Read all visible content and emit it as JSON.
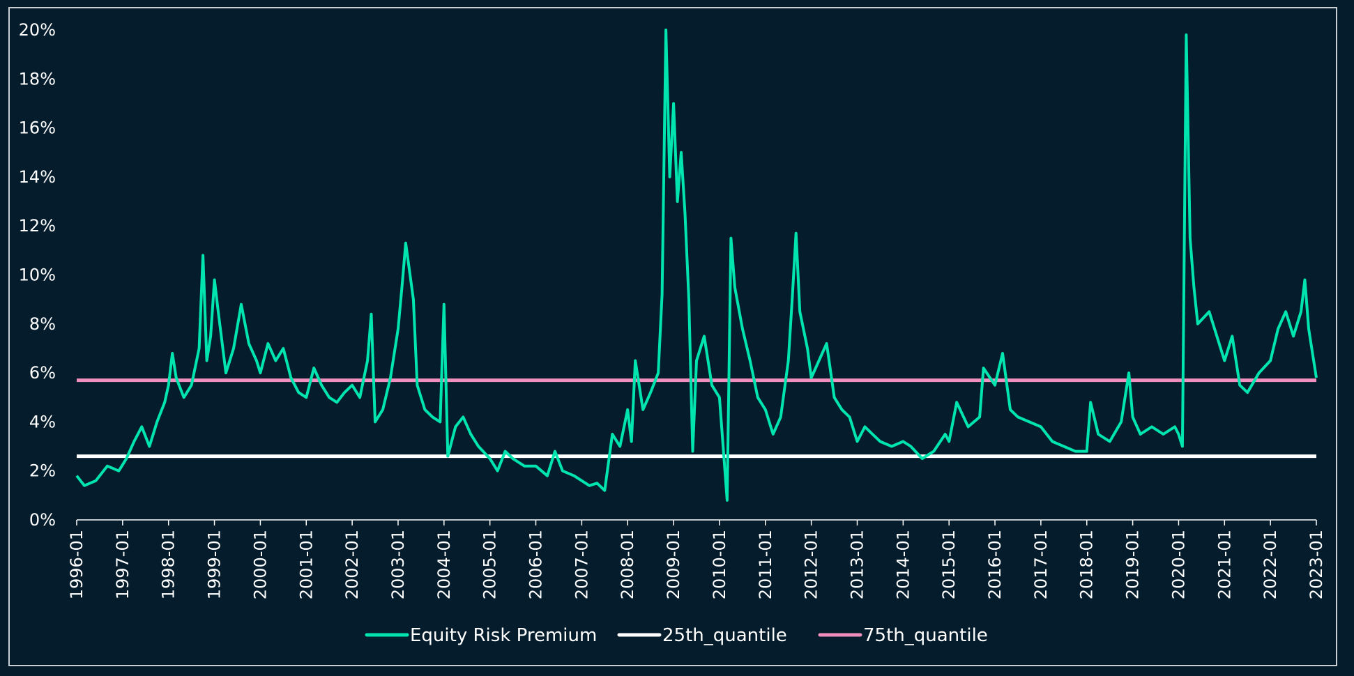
{
  "chart_data": {
    "type": "line",
    "title": "",
    "xlabel": "",
    "ylabel": "",
    "x_range": [
      "1996-01",
      "2023-01"
    ],
    "ylim": [
      0,
      20
    ],
    "y_format": "percent",
    "y_ticks": [
      {
        "value": 0,
        "label": "0%"
      },
      {
        "value": 2,
        "label": "2%"
      },
      {
        "value": 4,
        "label": "4%"
      },
      {
        "value": 6,
        "label": "6%"
      },
      {
        "value": 8,
        "label": "8%"
      },
      {
        "value": 10,
        "label": "10%"
      },
      {
        "value": 12,
        "label": "12%"
      },
      {
        "value": 14,
        "label": "14%"
      },
      {
        "value": 16,
        "label": "16%"
      },
      {
        "value": 18,
        "label": "18%"
      },
      {
        "value": 20,
        "label": "20%"
      }
    ],
    "x_ticks": [
      "1996-01",
      "1997-01",
      "1998-01",
      "1999-01",
      "2000-01",
      "2001-01",
      "2002-01",
      "2003-01",
      "2004-01",
      "2005-01",
      "2006-01",
      "2007-01",
      "2008-01",
      "2009-01",
      "2010-01",
      "2011-01",
      "2012-01",
      "2013-01",
      "2014-01",
      "2015-01",
      "2016-01",
      "2017-01",
      "2018-01",
      "2019-01",
      "2020-01",
      "2021-01",
      "2022-01",
      "2023-01"
    ],
    "grid": false,
    "legend_position": "bottom",
    "series": [
      {
        "name": "Equity Risk Premium",
        "color": "#00e5b0",
        "points": [
          [
            "1996-01",
            1.8
          ],
          [
            "1996-03",
            1.4
          ],
          [
            "1996-06",
            1.6
          ],
          [
            "1996-09",
            2.2
          ],
          [
            "1996-12",
            2.0
          ],
          [
            "1997-02",
            2.5
          ],
          [
            "1997-04",
            3.2
          ],
          [
            "1997-06",
            3.8
          ],
          [
            "1997-08",
            3.0
          ],
          [
            "1997-10",
            4.0
          ],
          [
            "1997-12",
            4.8
          ],
          [
            "1998-01",
            5.5
          ],
          [
            "1998-02",
            6.8
          ],
          [
            "1998-03",
            5.8
          ],
          [
            "1998-05",
            5.0
          ],
          [
            "1998-07",
            5.5
          ],
          [
            "1998-09",
            7.0
          ],
          [
            "1998-10",
            10.8
          ],
          [
            "1998-11",
            6.5
          ],
          [
            "1998-12",
            7.5
          ],
          [
            "1999-01",
            9.8
          ],
          [
            "1999-02",
            8.5
          ],
          [
            "1999-04",
            6.0
          ],
          [
            "1999-06",
            7.0
          ],
          [
            "1999-08",
            8.8
          ],
          [
            "1999-10",
            7.2
          ],
          [
            "1999-12",
            6.5
          ],
          [
            "2000-01",
            6.0
          ],
          [
            "2000-03",
            7.2
          ],
          [
            "2000-05",
            6.5
          ],
          [
            "2000-07",
            7.0
          ],
          [
            "2000-09",
            5.8
          ],
          [
            "2000-11",
            5.2
          ],
          [
            "2001-01",
            5.0
          ],
          [
            "2001-03",
            6.2
          ],
          [
            "2001-05",
            5.5
          ],
          [
            "2001-07",
            5.0
          ],
          [
            "2001-09",
            4.8
          ],
          [
            "2001-11",
            5.2
          ],
          [
            "2002-01",
            5.5
          ],
          [
            "2002-03",
            5.0
          ],
          [
            "2002-05",
            6.5
          ],
          [
            "2002-06",
            8.4
          ],
          [
            "2002-07",
            4.0
          ],
          [
            "2002-09",
            4.5
          ],
          [
            "2002-11",
            5.8
          ],
          [
            "2003-01",
            7.8
          ],
          [
            "2003-02",
            9.5
          ],
          [
            "2003-03",
            11.3
          ],
          [
            "2003-05",
            9.0
          ],
          [
            "2003-06",
            5.5
          ],
          [
            "2003-08",
            4.5
          ],
          [
            "2003-10",
            4.2
          ],
          [
            "2003-12",
            4.0
          ],
          [
            "2004-01",
            8.8
          ],
          [
            "2004-02",
            2.6
          ],
          [
            "2004-04",
            3.8
          ],
          [
            "2004-06",
            4.2
          ],
          [
            "2004-08",
            3.5
          ],
          [
            "2004-10",
            3.0
          ],
          [
            "2005-01",
            2.5
          ],
          [
            "2005-03",
            2.0
          ],
          [
            "2005-05",
            2.8
          ],
          [
            "2005-07",
            2.5
          ],
          [
            "2005-10",
            2.2
          ],
          [
            "2006-01",
            2.2
          ],
          [
            "2006-04",
            1.8
          ],
          [
            "2006-06",
            2.8
          ],
          [
            "2006-08",
            2.0
          ],
          [
            "2006-11",
            1.8
          ],
          [
            "2007-01",
            1.6
          ],
          [
            "2007-03",
            1.4
          ],
          [
            "2007-05",
            1.5
          ],
          [
            "2007-07",
            1.2
          ],
          [
            "2007-09",
            3.5
          ],
          [
            "2007-11",
            3.0
          ],
          [
            "2008-01",
            4.5
          ],
          [
            "2008-02",
            3.2
          ],
          [
            "2008-03",
            6.5
          ],
          [
            "2008-05",
            4.5
          ],
          [
            "2008-07",
            5.2
          ],
          [
            "2008-09",
            6.0
          ],
          [
            "2008-10",
            9.2
          ],
          [
            "2008-11",
            20.0
          ],
          [
            "2008-12",
            14.0
          ],
          [
            "2009-01",
            17.0
          ],
          [
            "2009-02",
            13.0
          ],
          [
            "2009-03",
            15.0
          ],
          [
            "2009-04",
            12.5
          ],
          [
            "2009-05",
            9.0
          ],
          [
            "2009-06",
            2.8
          ],
          [
            "2009-07",
            6.5
          ],
          [
            "2009-09",
            7.5
          ],
          [
            "2009-11",
            5.5
          ],
          [
            "2010-01",
            5.0
          ],
          [
            "2010-03",
            0.8
          ],
          [
            "2010-04",
            11.5
          ],
          [
            "2010-05",
            9.5
          ],
          [
            "2010-07",
            7.8
          ],
          [
            "2010-09",
            6.5
          ],
          [
            "2010-11",
            5.0
          ],
          [
            "2011-01",
            4.5
          ],
          [
            "2011-03",
            3.5
          ],
          [
            "2011-05",
            4.2
          ],
          [
            "2011-07",
            6.5
          ],
          [
            "2011-08",
            9.0
          ],
          [
            "2011-09",
            11.7
          ],
          [
            "2011-10",
            8.5
          ],
          [
            "2011-12",
            7.0
          ],
          [
            "2012-01",
            5.8
          ],
          [
            "2012-03",
            6.5
          ],
          [
            "2012-05",
            7.2
          ],
          [
            "2012-07",
            5.0
          ],
          [
            "2012-09",
            4.5
          ],
          [
            "2012-11",
            4.2
          ],
          [
            "2013-01",
            3.2
          ],
          [
            "2013-03",
            3.8
          ],
          [
            "2013-05",
            3.5
          ],
          [
            "2013-07",
            3.2
          ],
          [
            "2013-10",
            3.0
          ],
          [
            "2014-01",
            3.2
          ],
          [
            "2014-03",
            3.0
          ],
          [
            "2014-06",
            2.5
          ],
          [
            "2014-09",
            2.8
          ],
          [
            "2014-12",
            3.5
          ],
          [
            "2015-01",
            3.2
          ],
          [
            "2015-03",
            4.8
          ],
          [
            "2015-06",
            3.8
          ],
          [
            "2015-09",
            4.2
          ],
          [
            "2015-10",
            6.2
          ],
          [
            "2016-01",
            5.5
          ],
          [
            "2016-03",
            6.8
          ],
          [
            "2016-05",
            4.5
          ],
          [
            "2016-07",
            4.2
          ],
          [
            "2016-10",
            4.0
          ],
          [
            "2017-01",
            3.8
          ],
          [
            "2017-04",
            3.2
          ],
          [
            "2017-07",
            3.0
          ],
          [
            "2017-10",
            2.8
          ],
          [
            "2018-01",
            2.8
          ],
          [
            "2018-02",
            4.8
          ],
          [
            "2018-04",
            3.5
          ],
          [
            "2018-07",
            3.2
          ],
          [
            "2018-10",
            4.0
          ],
          [
            "2018-12",
            6.0
          ],
          [
            "2019-01",
            4.2
          ],
          [
            "2019-03",
            3.5
          ],
          [
            "2019-06",
            3.8
          ],
          [
            "2019-09",
            3.5
          ],
          [
            "2019-12",
            3.8
          ],
          [
            "2020-01",
            3.5
          ],
          [
            "2020-02",
            3.0
          ],
          [
            "2020-03",
            19.8
          ],
          [
            "2020-04",
            11.5
          ],
          [
            "2020-05",
            9.5
          ],
          [
            "2020-06",
            8.0
          ],
          [
            "2020-09",
            8.5
          ],
          [
            "2020-12",
            7.0
          ],
          [
            "2021-01",
            6.5
          ],
          [
            "2021-03",
            7.5
          ],
          [
            "2021-05",
            5.5
          ],
          [
            "2021-07",
            5.2
          ],
          [
            "2021-10",
            6.0
          ],
          [
            "2022-01",
            6.5
          ],
          [
            "2022-03",
            7.8
          ],
          [
            "2022-05",
            8.5
          ],
          [
            "2022-07",
            7.5
          ],
          [
            "2022-09",
            8.5
          ],
          [
            "2022-10",
            9.8
          ],
          [
            "2022-11",
            7.8
          ],
          [
            "2023-01",
            5.8
          ]
        ]
      },
      {
        "name": "25th_quantile",
        "color": "#ffffff",
        "points": [
          [
            "1996-01",
            2.6
          ],
          [
            "2023-01",
            2.6
          ]
        ]
      },
      {
        "name": "75th_quantile",
        "color": "#f08fbd",
        "points": [
          [
            "1996-01",
            5.7
          ],
          [
            "2023-01",
            5.7
          ]
        ]
      }
    ]
  }
}
